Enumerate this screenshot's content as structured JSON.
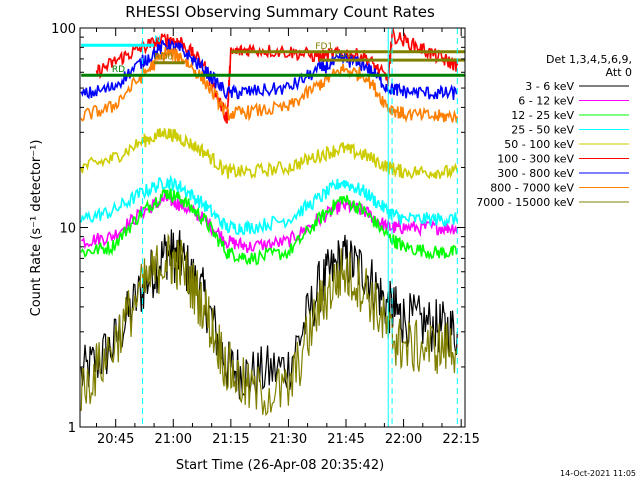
{
  "chart_data": {
    "type": "line",
    "title": "RHESSI Observing Summary Count Rates",
    "xlabel": "Start Time (26-Apr-08 20:35:42)",
    "ylabel": "Count Rate (s⁻¹ detector⁻¹)",
    "y_scale": "log",
    "ylim": [
      1,
      100
    ],
    "xlim": [
      "20:35:42",
      "22:16:00"
    ],
    "x_ticks": [
      "20:45",
      "21:00",
      "21:15",
      "21:30",
      "21:45",
      "22:00",
      "22:15"
    ],
    "y_ticks": [
      "1",
      "10",
      "100"
    ],
    "grid": false,
    "legend_title": [
      "Det 1,3,4,5,6,9,",
      "Att 0"
    ],
    "legend_position": "right",
    "timestamp": "14-Oct-2021 11:05",
    "series": [
      {
        "name": "3 - 6 keV",
        "color": "#000000",
        "x": [
          "20:36",
          "20:44",
          "20:52",
          "20:58",
          "21:02",
          "21:08",
          "21:14",
          "21:20",
          "21:30",
          "21:38",
          "21:44",
          "21:50",
          "21:56",
          "22:00",
          "22:08",
          "22:14"
        ],
        "y": [
          1.8,
          2.5,
          5,
          7.5,
          7,
          4.5,
          2,
          1.8,
          2,
          5,
          7,
          6,
          4,
          3.5,
          3.2,
          3
        ]
      },
      {
        "name": "6 - 12 keV",
        "color": "#ff00ff",
        "x": [
          "20:36",
          "20:44",
          "20:52",
          "20:58",
          "21:02",
          "21:08",
          "21:14",
          "21:20",
          "21:30",
          "21:38",
          "21:44",
          "21:50",
          "21:56",
          "22:00",
          "22:08",
          "22:14"
        ],
        "y": [
          8.5,
          9,
          12,
          14,
          13,
          11,
          8.5,
          8,
          8.5,
          11,
          13,
          12,
          10,
          10,
          10,
          10
        ]
      },
      {
        "name": "12 - 25 keV",
        "color": "#00ff00",
        "x": [
          "20:36",
          "20:44",
          "20:52",
          "20:58",
          "21:02",
          "21:08",
          "21:14",
          "21:20",
          "21:30",
          "21:38",
          "21:44",
          "21:50",
          "21:56",
          "22:00",
          "22:08",
          "22:14"
        ],
        "y": [
          7.5,
          8,
          12,
          15,
          14,
          11,
          7.5,
          7,
          7.5,
          11,
          14,
          12,
          9,
          8,
          7.5,
          7.5
        ]
      },
      {
        "name": "25 - 50 keV",
        "color": "#00ffff",
        "x": [
          "20:36",
          "20:44",
          "20:52",
          "20:58",
          "21:02",
          "21:08",
          "21:14",
          "21:20",
          "21:30",
          "21:38",
          "21:44",
          "21:50",
          "21:56",
          "22:00",
          "22:08",
          "22:14"
        ],
        "y": [
          11,
          12,
          15,
          17,
          16,
          13,
          10,
          10,
          11,
          14,
          17,
          15,
          12,
          11,
          11,
          11
        ]
      },
      {
        "name": "50 - 100 keV",
        "color": "#cccc00",
        "x": [
          "20:36",
          "20:44",
          "20:52",
          "20:58",
          "21:02",
          "21:08",
          "21:14",
          "21:20",
          "21:30",
          "21:38",
          "21:44",
          "21:50",
          "21:56",
          "22:00",
          "22:08",
          "22:14"
        ],
        "y": [
          20,
          22,
          27,
          30,
          28,
          24,
          19,
          19,
          20,
          23,
          25,
          23,
          20,
          19,
          19,
          19
        ]
      },
      {
        "name": "100 - 300 keV",
        "color": "#ff0000",
        "x": [
          "20:40",
          "20:46",
          "20:52",
          "20:58",
          "21:02",
          "21:08",
          "21:14",
          "21:15",
          "21:20",
          "21:30",
          "21:38",
          "21:44",
          "21:50",
          "21:56",
          "21:57",
          "22:04",
          "22:10",
          "22:14"
        ],
        "y": [
          60,
          70,
          80,
          88,
          85,
          65,
          35,
          75,
          78,
          76,
          72,
          75,
          72,
          55,
          92,
          80,
          70,
          65
        ]
      },
      {
        "name": "300 - 800 keV",
        "color": "#0000ff",
        "x": [
          "20:36",
          "20:44",
          "20:52",
          "20:58",
          "21:02",
          "21:08",
          "21:14",
          "21:20",
          "21:30",
          "21:38",
          "21:44",
          "21:50",
          "21:56",
          "22:00",
          "22:08",
          "22:14"
        ],
        "y": [
          46,
          50,
          68,
          82,
          78,
          62,
          47,
          48,
          50,
          62,
          70,
          65,
          50,
          48,
          47,
          47
        ]
      },
      {
        "name": "800 - 7000 keV",
        "color": "#ff8000",
        "x": [
          "20:36",
          "20:44",
          "20:52",
          "20:58",
          "21:02",
          "21:08",
          "21:14",
          "21:20",
          "21:30",
          "21:38",
          "21:44",
          "21:50",
          "21:56",
          "22:00",
          "22:08",
          "22:14"
        ],
        "y": [
          36,
          40,
          58,
          75,
          72,
          55,
          37,
          38,
          40,
          52,
          62,
          58,
          40,
          37,
          36,
          36
        ]
      },
      {
        "name": "7000 - 15000 keV",
        "color": "#808000",
        "x": [
          "20:36",
          "20:44",
          "20:52",
          "20:58",
          "21:02",
          "21:08",
          "21:14",
          "21:20",
          "21:30",
          "21:38",
          "21:44",
          "21:50",
          "21:56",
          "22:00",
          "22:08",
          "22:14"
        ],
        "y": [
          1.5,
          2.5,
          5,
          7,
          6.5,
          4,
          2,
          1.5,
          1.5,
          4,
          6,
          5,
          3,
          2.5,
          2.5,
          2.5
        ]
      }
    ],
    "flag_bars": [
      {
        "label": "N",
        "color": "#00ffff",
        "y": 82,
        "x_start": "20:36",
        "x_end": "20:55",
        "label_x": "20:55"
      },
      {
        "label": "FD1",
        "color": "#808000",
        "y": 76,
        "x_start": "21:15",
        "x_end": "22:16",
        "label_x": "21:37"
      },
      {
        "label": "FD2",
        "color": "#808000",
        "y": 69,
        "x_start": "21:38",
        "x_end": "22:16",
        "label_x": "21:42"
      },
      {
        "label": "RD0",
        "color": "#808000",
        "y": 67,
        "x_start": "20:55",
        "x_end": "21:03",
        "label_x": "20:55"
      },
      {
        "label": "RD",
        "color": "#008000",
        "y": 58,
        "x_start": "20:36",
        "x_end": "22:16",
        "label_x": "20:44"
      }
    ],
    "vertical_markers": [
      {
        "x": "20:52",
        "color": "#00ffff",
        "style": "dashed"
      },
      {
        "x": "21:56",
        "color": "#00ffff",
        "style": "solid"
      },
      {
        "x": "21:57",
        "color": "#00ffff",
        "style": "dashed"
      },
      {
        "x": "22:14",
        "color": "#00ffff",
        "style": "dashed"
      }
    ]
  }
}
